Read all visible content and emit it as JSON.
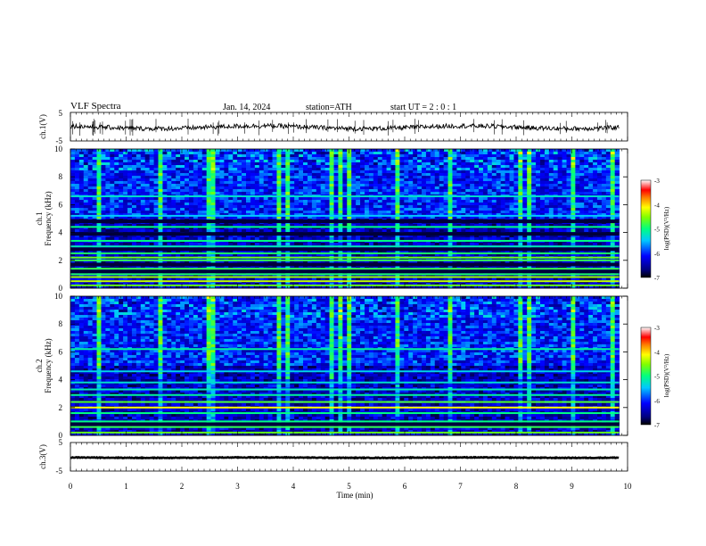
{
  "header": {
    "title": "VLF Spectra",
    "date": "Jan. 14, 2024",
    "station": "station=ATH",
    "start_ut": "start UT = 2 : 0 : 1"
  },
  "chart_data": [
    {
      "type": "line",
      "panel": "ch1-waveform",
      "ylabel": "ch.1(V)",
      "ylim": [
        -5,
        5
      ],
      "yticks": [
        "5",
        "-5"
      ],
      "xlim": [
        0,
        10
      ],
      "baseline": -0.2,
      "color": "#000000"
    },
    {
      "type": "heatmap",
      "panel": "ch1-spectrogram",
      "ylabel": "Frequency (kHz)",
      "channel_label": "ch.1",
      "ylim": [
        0,
        10
      ],
      "yticks": [
        "0",
        "2",
        "4",
        "6",
        "8",
        "10"
      ],
      "xlim": [
        0,
        10
      ],
      "data_end_min": 9.85,
      "colorbar": {
        "label": "log(PSD)(V²/Hz)",
        "ticks": [
          "-3",
          "-4",
          "-5",
          "-6",
          "-7"
        ],
        "range": [
          -7,
          -3
        ]
      },
      "bands": [
        {
          "freq": 0.2,
          "level": -4.6
        },
        {
          "freq": 0.5,
          "level": -4.3
        },
        {
          "freq": 0.8,
          "level": -4.4
        },
        {
          "freq": 1.0,
          "level": -4.9
        },
        {
          "freq": 1.4,
          "level": -4.8
        },
        {
          "freq": 2.0,
          "level": -4.8
        },
        {
          "freq": 2.2,
          "level": -4.6
        },
        {
          "freq": 2.5,
          "level": -4.9
        },
        {
          "freq": 3.0,
          "level": -5.2
        },
        {
          "freq": 3.4,
          "level": -5.0
        },
        {
          "freq": 4.4,
          "level": -5.0
        },
        {
          "freq": 5.2,
          "level": -5.5
        },
        {
          "freq": 6.6,
          "level": -5.3
        }
      ],
      "dark_bands": [
        1.2,
        1.7,
        2.8,
        3.9,
        4.8
      ]
    },
    {
      "type": "heatmap",
      "panel": "ch2-spectrogram",
      "ylabel": "Frequency (kHz)",
      "channel_label": "ch.2",
      "ylim": [
        0,
        10
      ],
      "yticks": [
        "0",
        "2",
        "4",
        "6",
        "8",
        "10"
      ],
      "xlim": [
        0,
        10
      ],
      "data_end_min": 9.85,
      "colorbar": {
        "label": "log(PSD)(V²/Hz)",
        "ticks": [
          "-3",
          "-4",
          "-5",
          "-6",
          "-7"
        ],
        "range": [
          -7,
          -3
        ]
      },
      "bands": [
        {
          "freq": 0.2,
          "level": -4.6
        },
        {
          "freq": 0.6,
          "level": -4.8
        },
        {
          "freq": 1.0,
          "level": -5.0
        },
        {
          "freq": 1.6,
          "level": -5.0
        },
        {
          "freq": 2.0,
          "level": -4.1
        },
        {
          "freq": 2.4,
          "level": -4.7
        },
        {
          "freq": 2.9,
          "level": -5.1
        },
        {
          "freq": 3.3,
          "level": -5.2
        },
        {
          "freq": 3.8,
          "level": -5.3
        },
        {
          "freq": 4.6,
          "level": -5.4
        },
        {
          "freq": 6.2,
          "level": -5.1
        }
      ],
      "dark_bands": [
        0.8
      ]
    },
    {
      "type": "line",
      "panel": "ch3-waveform",
      "ylabel": "ch.3(V)",
      "ylim": [
        -5,
        5
      ],
      "yticks": [
        "5",
        "-5"
      ],
      "xlim": [
        0,
        10
      ],
      "baseline": -0.3,
      "xlabel": "Time (min)",
      "xticks": [
        "0",
        "1",
        "2",
        "3",
        "4",
        "5",
        "6",
        "7",
        "8",
        "9",
        "10"
      ],
      "color": "#000000"
    }
  ]
}
